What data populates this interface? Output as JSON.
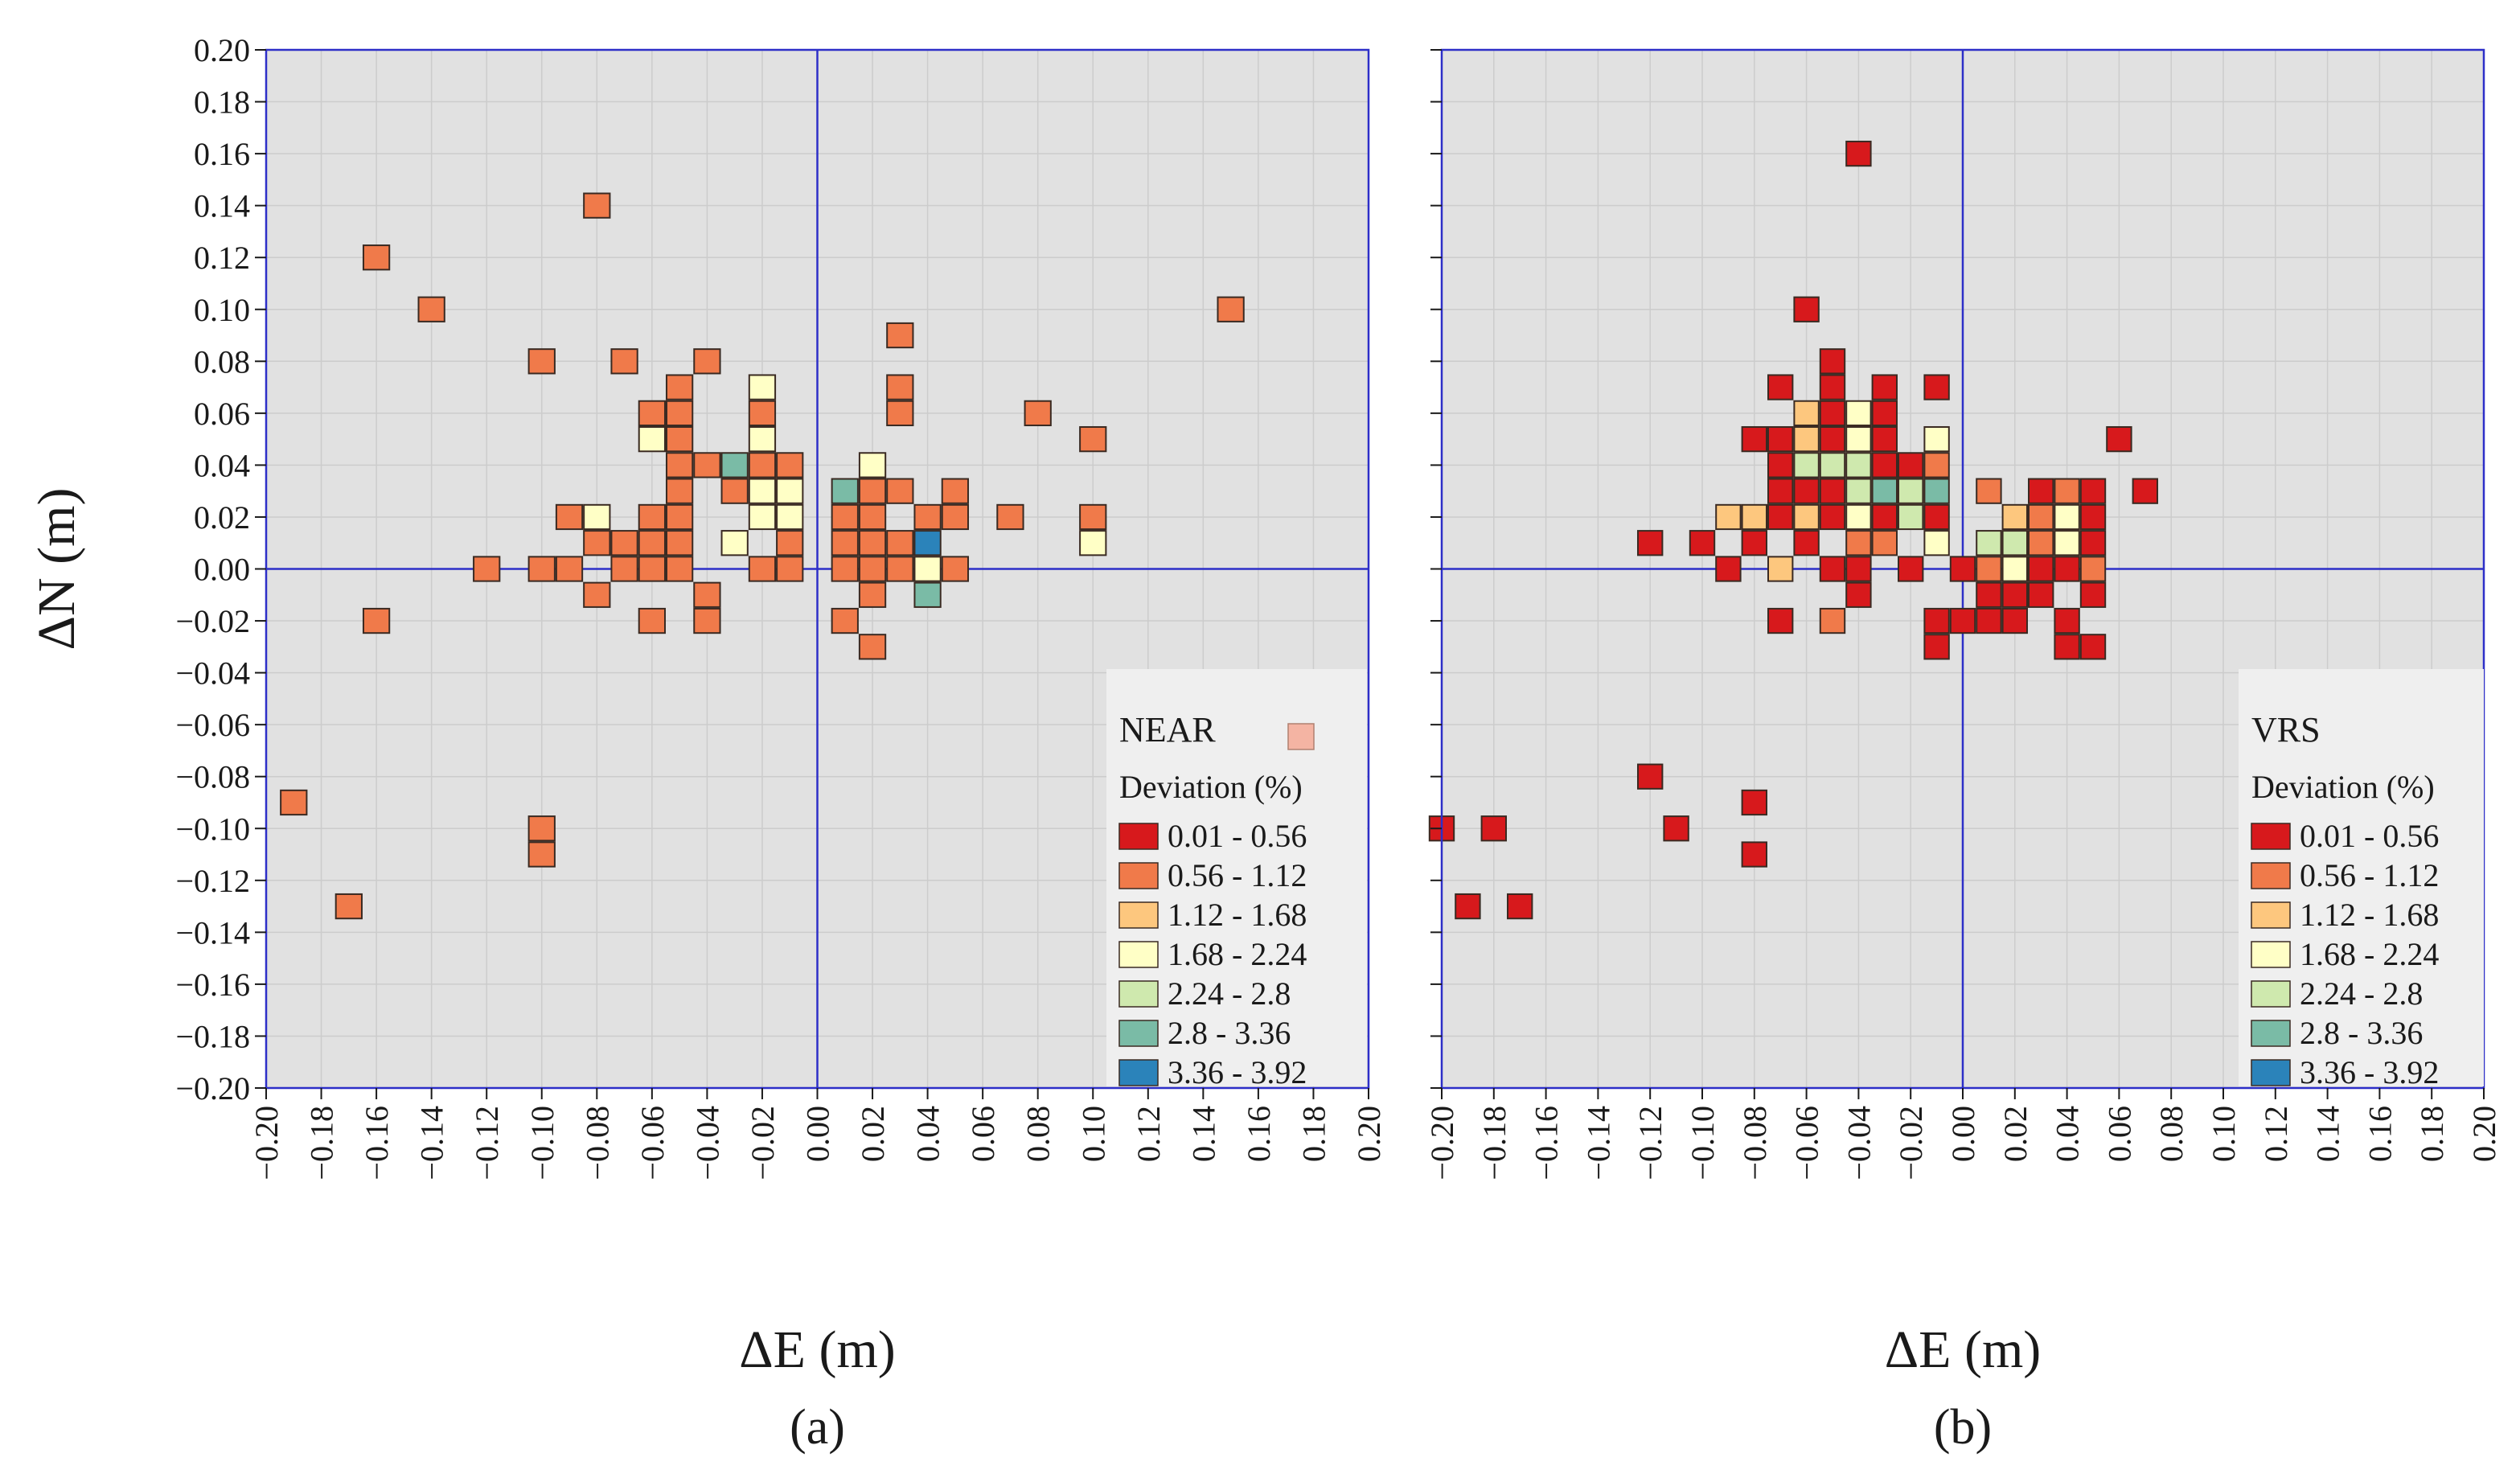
{
  "chart_data": [
    {
      "type": "heatmap",
      "panel_label": "a",
      "panel_caption": "(a)",
      "legend_name": "NEAR",
      "legend_title": "Deviation (%)",
      "xlabel": "ΔE (m)",
      "ylabel": "ΔN (m)",
      "xlim": [
        -0.2,
        0.2
      ],
      "ylim": [
        -0.2,
        0.2
      ],
      "grid": true,
      "legend_position": "bottom-right",
      "cell_size": 0.01,
      "cells": [
        [
          -0.16,
          0.12,
          1
        ],
        [
          -0.08,
          0.14,
          1
        ],
        [
          -0.14,
          0.1,
          1
        ],
        [
          0.15,
          0.1,
          1
        ],
        [
          0.03,
          0.09,
          1
        ],
        [
          -0.1,
          0.08,
          1
        ],
        [
          -0.07,
          0.08,
          1
        ],
        [
          -0.04,
          0.08,
          1
        ],
        [
          -0.05,
          0.07,
          1
        ],
        [
          -0.02,
          0.07,
          3
        ],
        [
          0.03,
          0.07,
          1
        ],
        [
          -0.06,
          0.06,
          1
        ],
        [
          -0.05,
          0.06,
          1
        ],
        [
          -0.02,
          0.06,
          1
        ],
        [
          0.03,
          0.06,
          1
        ],
        [
          0.08,
          0.06,
          1
        ],
        [
          -0.06,
          0.05,
          3
        ],
        [
          -0.05,
          0.05,
          1
        ],
        [
          -0.02,
          0.05,
          3
        ],
        [
          0.1,
          0.05,
          1
        ],
        [
          -0.05,
          0.04,
          1
        ],
        [
          -0.04,
          0.04,
          1
        ],
        [
          -0.03,
          0.04,
          5
        ],
        [
          -0.02,
          0.04,
          1
        ],
        [
          -0.01,
          0.04,
          1
        ],
        [
          0.02,
          0.04,
          3
        ],
        [
          -0.05,
          0.03,
          1
        ],
        [
          -0.03,
          0.03,
          1
        ],
        [
          -0.02,
          0.03,
          3
        ],
        [
          -0.01,
          0.03,
          3
        ],
        [
          0.01,
          0.03,
          5
        ],
        [
          0.02,
          0.03,
          1
        ],
        [
          0.03,
          0.03,
          1
        ],
        [
          0.05,
          0.03,
          1
        ],
        [
          -0.09,
          0.02,
          1
        ],
        [
          -0.08,
          0.02,
          3
        ],
        [
          -0.06,
          0.02,
          1
        ],
        [
          -0.05,
          0.02,
          1
        ],
        [
          -0.02,
          0.02,
          3
        ],
        [
          -0.01,
          0.02,
          3
        ],
        [
          0.01,
          0.02,
          1
        ],
        [
          0.02,
          0.02,
          1
        ],
        [
          0.04,
          0.02,
          1
        ],
        [
          0.05,
          0.02,
          1
        ],
        [
          0.07,
          0.02,
          1
        ],
        [
          0.1,
          0.02,
          1
        ],
        [
          -0.08,
          0.01,
          1
        ],
        [
          -0.07,
          0.01,
          1
        ],
        [
          -0.06,
          0.01,
          1
        ],
        [
          -0.05,
          0.01,
          1
        ],
        [
          -0.03,
          0.01,
          3
        ],
        [
          -0.01,
          0.01,
          1
        ],
        [
          0.01,
          0.01,
          1
        ],
        [
          0.02,
          0.01,
          1
        ],
        [
          0.03,
          0.01,
          1
        ],
        [
          0.04,
          0.01,
          6
        ],
        [
          0.1,
          0.01,
          3
        ],
        [
          -0.12,
          0.0,
          1
        ],
        [
          -0.1,
          0.0,
          1
        ],
        [
          -0.09,
          0.0,
          1
        ],
        [
          -0.07,
          0.0,
          1
        ],
        [
          -0.06,
          0.0,
          1
        ],
        [
          -0.05,
          0.0,
          1
        ],
        [
          -0.02,
          0.0,
          1
        ],
        [
          -0.01,
          0.0,
          1
        ],
        [
          0.01,
          0.0,
          1
        ],
        [
          0.02,
          0.0,
          1
        ],
        [
          0.03,
          0.0,
          1
        ],
        [
          0.04,
          0.0,
          3
        ],
        [
          0.05,
          0.0,
          1
        ],
        [
          -0.08,
          -0.01,
          1
        ],
        [
          -0.04,
          -0.01,
          1
        ],
        [
          0.02,
          -0.01,
          1
        ],
        [
          0.04,
          -0.01,
          5
        ],
        [
          -0.16,
          -0.02,
          1
        ],
        [
          -0.06,
          -0.02,
          1
        ],
        [
          -0.04,
          -0.02,
          1
        ],
        [
          0.01,
          -0.02,
          1
        ],
        [
          0.02,
          -0.03,
          1
        ],
        [
          -0.19,
          -0.09,
          1
        ],
        [
          -0.1,
          -0.1,
          1
        ],
        [
          -0.1,
          -0.11,
          1
        ],
        [
          -0.17,
          -0.13,
          1
        ]
      ]
    },
    {
      "type": "heatmap",
      "panel_label": "b",
      "panel_caption": "(b)",
      "legend_name": "VRS",
      "legend_title": "Deviation (%)",
      "xlabel": "ΔE (m)",
      "ylabel": "",
      "xlim": [
        -0.2,
        0.2
      ],
      "ylim": [
        -0.2,
        0.2
      ],
      "grid": true,
      "legend_position": "bottom-right",
      "cell_size": 0.01,
      "cells": [
        [
          -0.04,
          0.16,
          0
        ],
        [
          -0.06,
          0.1,
          0
        ],
        [
          -0.05,
          0.08,
          0
        ],
        [
          -0.07,
          0.07,
          0
        ],
        [
          -0.05,
          0.07,
          0
        ],
        [
          -0.03,
          0.07,
          0
        ],
        [
          -0.01,
          0.07,
          0
        ],
        [
          -0.06,
          0.06,
          2
        ],
        [
          -0.05,
          0.06,
          0
        ],
        [
          -0.04,
          0.06,
          3
        ],
        [
          -0.03,
          0.06,
          0
        ],
        [
          -0.08,
          0.05,
          0
        ],
        [
          -0.07,
          0.05,
          0
        ],
        [
          -0.06,
          0.05,
          2
        ],
        [
          -0.05,
          0.05,
          0
        ],
        [
          -0.04,
          0.05,
          3
        ],
        [
          -0.03,
          0.05,
          0
        ],
        [
          -0.01,
          0.05,
          3
        ],
        [
          0.06,
          0.05,
          0
        ],
        [
          -0.07,
          0.04,
          0
        ],
        [
          -0.06,
          0.04,
          4
        ],
        [
          -0.05,
          0.04,
          4
        ],
        [
          -0.04,
          0.04,
          4
        ],
        [
          -0.03,
          0.04,
          0
        ],
        [
          -0.02,
          0.04,
          0
        ],
        [
          -0.01,
          0.04,
          1
        ],
        [
          -0.07,
          0.03,
          0
        ],
        [
          -0.06,
          0.03,
          0
        ],
        [
          -0.05,
          0.03,
          0
        ],
        [
          -0.04,
          0.03,
          4
        ],
        [
          -0.03,
          0.03,
          5
        ],
        [
          -0.02,
          0.03,
          4
        ],
        [
          -0.01,
          0.03,
          5
        ],
        [
          0.01,
          0.03,
          1
        ],
        [
          0.03,
          0.03,
          0
        ],
        [
          0.04,
          0.03,
          1
        ],
        [
          0.05,
          0.03,
          0
        ],
        [
          0.07,
          0.03,
          0
        ],
        [
          -0.09,
          0.02,
          2
        ],
        [
          -0.08,
          0.02,
          2
        ],
        [
          -0.07,
          0.02,
          0
        ],
        [
          -0.06,
          0.02,
          2
        ],
        [
          -0.05,
          0.02,
          0
        ],
        [
          -0.04,
          0.02,
          3
        ],
        [
          -0.03,
          0.02,
          0
        ],
        [
          -0.02,
          0.02,
          4
        ],
        [
          -0.01,
          0.02,
          0
        ],
        [
          0.02,
          0.02,
          2
        ],
        [
          0.03,
          0.02,
          1
        ],
        [
          0.04,
          0.02,
          3
        ],
        [
          0.05,
          0.02,
          0
        ],
        [
          -0.12,
          0.01,
          0
        ],
        [
          -0.1,
          0.01,
          0
        ],
        [
          -0.08,
          0.01,
          0
        ],
        [
          -0.06,
          0.01,
          0
        ],
        [
          -0.04,
          0.01,
          1
        ],
        [
          -0.03,
          0.01,
          1
        ],
        [
          -0.01,
          0.01,
          3
        ],
        [
          0.01,
          0.01,
          4
        ],
        [
          0.02,
          0.01,
          4
        ],
        [
          0.03,
          0.01,
          1
        ],
        [
          0.04,
          0.01,
          3
        ],
        [
          0.05,
          0.01,
          0
        ],
        [
          -0.09,
          0.0,
          0
        ],
        [
          -0.07,
          0.0,
          2
        ],
        [
          -0.05,
          0.0,
          0
        ],
        [
          -0.04,
          0.0,
          0
        ],
        [
          -0.02,
          0.0,
          0
        ],
        [
          0.0,
          0.0,
          0
        ],
        [
          0.01,
          0.0,
          1
        ],
        [
          0.02,
          0.0,
          3
        ],
        [
          0.03,
          0.0,
          0
        ],
        [
          0.04,
          0.0,
          0
        ],
        [
          0.05,
          0.0,
          1
        ],
        [
          -0.04,
          -0.01,
          0
        ],
        [
          0.01,
          -0.01,
          0
        ],
        [
          0.02,
          -0.01,
          0
        ],
        [
          0.03,
          -0.01,
          0
        ],
        [
          0.05,
          -0.01,
          0
        ],
        [
          -0.07,
          -0.02,
          0
        ],
        [
          -0.05,
          -0.02,
          1
        ],
        [
          -0.01,
          -0.02,
          0
        ],
        [
          0.0,
          -0.02,
          0
        ],
        [
          0.01,
          -0.02,
          0
        ],
        [
          0.02,
          -0.02,
          0
        ],
        [
          0.04,
          -0.02,
          0
        ],
        [
          -0.01,
          -0.03,
          0
        ],
        [
          0.04,
          -0.03,
          0
        ],
        [
          0.05,
          -0.03,
          0
        ],
        [
          -0.12,
          -0.08,
          0
        ],
        [
          -0.08,
          -0.09,
          0
        ],
        [
          -0.2,
          -0.1,
          0
        ],
        [
          -0.18,
          -0.1,
          0
        ],
        [
          -0.11,
          -0.1,
          0
        ],
        [
          -0.08,
          -0.11,
          0
        ],
        [
          -0.19,
          -0.13,
          0
        ],
        [
          -0.17,
          -0.13,
          0
        ]
      ]
    }
  ],
  "legend_bins": [
    "0.01 - 0.56",
    "0.56 - 1.12",
    "1.12 - 1.68",
    "1.68 - 2.24",
    "2.24 - 2.8",
    "2.8 - 3.36",
    "3.36 - 3.92"
  ],
  "colors": {
    "bins": [
      "#d7191c",
      "#f07a4a",
      "#fdc77e",
      "#ffffc6",
      "#cfe9ae",
      "#7abba6",
      "#2b83ba"
    ],
    "plot_background": "#e1e1e1",
    "grid": "#cccccc",
    "frame": "#2d2fc8",
    "cell_border": "#3a2a22",
    "legend_background": "#efefef",
    "near_swatch": "#f4b4a3"
  },
  "tick_values": [
    -0.2,
    -0.18,
    -0.16,
    -0.14,
    -0.12,
    -0.1,
    -0.08,
    -0.06,
    -0.04,
    -0.02,
    0.0,
    0.02,
    0.04,
    0.06,
    0.08,
    0.1,
    0.12,
    0.14,
    0.16,
    0.18,
    0.2
  ]
}
